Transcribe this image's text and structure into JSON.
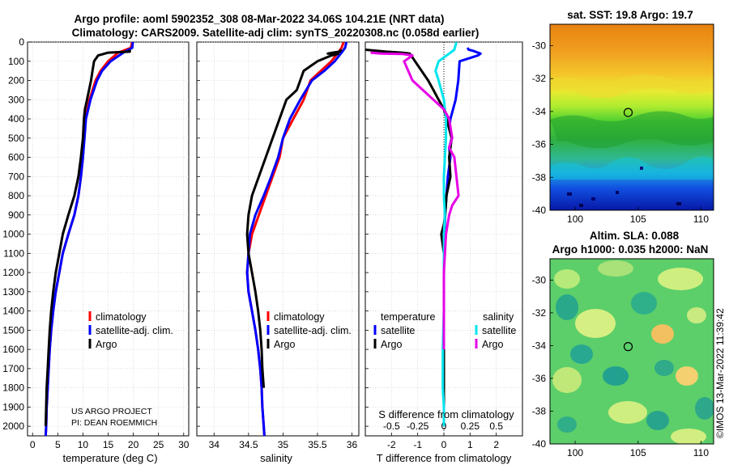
{
  "header": {
    "title_line1": "Argo profile: aoml 5902352_308 08-Mar-2022 34.06S 104.21E (NRT data)",
    "title_line2": "Climatology: CARS2009. Satellite-adj clim: synTS_20220308.nc (0.058d earlier)"
  },
  "credit": {
    "line1": "US ARGO PROJECT",
    "line2": "PI: DEAN ROEMMICH"
  },
  "watermark": "©IMOS 13-Mar-2022 11:39:42",
  "colors": {
    "climatology": "#ff0000",
    "satellite_adj": "#0000ff",
    "argo": "#000000",
    "satellite_s": "#00e5ee",
    "argo_s": "#e600e6"
  },
  "chart_data": [
    {
      "type": "line",
      "id": "temperature",
      "xlabel": "temperature (deg C)",
      "xlim": [
        -1,
        31
      ],
      "xticks": [
        0,
        5,
        10,
        15,
        20,
        25,
        30
      ],
      "ylim": [
        0,
        2050
      ],
      "yticks": [
        0,
        100,
        200,
        300,
        400,
        500,
        600,
        700,
        800,
        900,
        1000,
        1100,
        1200,
        1300,
        1400,
        1500,
        1600,
        1700,
        1800,
        1900,
        2000
      ],
      "y_reversed": true,
      "legend": [
        "climatology",
        "satellite-adj. clim.",
        "Argo"
      ],
      "series": [
        {
          "name": "climatology",
          "x": [
            19.8,
            19.5,
            17,
            15,
            13.5,
            12.5,
            11.3,
            10.5,
            10.2,
            10,
            9.6,
            9.1,
            8.3,
            7.1,
            6,
            5.3,
            4.6,
            4.1,
            3.7,
            3.4,
            3.2,
            3,
            2.8,
            2.7,
            2.6
          ],
          "y": [
            0,
            30,
            55,
            100,
            150,
            200,
            300,
            400,
            500,
            600,
            700,
            800,
            900,
            1000,
            1100,
            1200,
            1300,
            1400,
            1500,
            1600,
            1700,
            1800,
            1900,
            2000,
            2050
          ]
        },
        {
          "name": "satellite-adj. clim.",
          "x": [
            19.9,
            19.8,
            18,
            15.5,
            13.8,
            12.8,
            11.5,
            10.6,
            10.3,
            10,
            9.6,
            9.1,
            8.3,
            7.1,
            6,
            5.3,
            4.6,
            4.1,
            3.7,
            3.4,
            3.2,
            3,
            2.8,
            2.7,
            2.6
          ],
          "y": [
            0,
            30,
            55,
            100,
            150,
            200,
            300,
            400,
            500,
            600,
            700,
            800,
            900,
            1000,
            1100,
            1200,
            1300,
            1400,
            1500,
            1600,
            1700,
            1800,
            1900,
            2000,
            2050
          ]
        },
        {
          "name": "Argo",
          "x": [
            19.3,
            19.3,
            15,
            13,
            12.2,
            11.9,
            11.6,
            11.2,
            10.8,
            10.4,
            10.2,
            10,
            9.6,
            9.1,
            8.3,
            7.1,
            6,
            5.3,
            4.6,
            4.1,
            3.7,
            3.4,
            3.2,
            3,
            2.8,
            2.7,
            2.6
          ],
          "y": [
            40,
            50,
            55,
            70,
            100,
            150,
            200,
            250,
            300,
            350,
            400,
            500,
            600,
            700,
            800,
            900,
            1000,
            1100,
            1200,
            1300,
            1400,
            1500,
            1600,
            1700,
            1800,
            1900,
            2000
          ]
        }
      ]
    },
    {
      "type": "line",
      "id": "salinity",
      "xlabel": "salinity",
      "xlim": [
        33.75,
        36.1
      ],
      "xticks": [
        34,
        34.5,
        35,
        35.5,
        36
      ],
      "xticklabels": [
        "34",
        "34.5",
        "35",
        "35.5",
        "36"
      ],
      "ylim": [
        0,
        2050
      ],
      "y_reversed": true,
      "legend": [
        "climatology",
        "satellite-adj. clim.",
        "Argo"
      ],
      "series": [
        {
          "name": "climatology",
          "x": [
            35.88,
            35.85,
            35.8,
            35.7,
            35.55,
            35.4,
            35.3,
            35.15,
            35.0,
            34.95,
            34.85,
            34.75,
            34.65,
            34.55,
            34.5,
            34.48,
            34.5,
            34.55,
            34.6,
            34.64,
            34.67,
            34.69,
            34.7,
            34.72,
            34.73
          ],
          "y": [
            0,
            30,
            55,
            100,
            150,
            200,
            300,
            400,
            500,
            600,
            700,
            800,
            900,
            1000,
            1100,
            1200,
            1300,
            1400,
            1500,
            1600,
            1700,
            1800,
            1900,
            2000,
            2050
          ]
        },
        {
          "name": "satellite-adj. clim.",
          "x": [
            35.92,
            35.9,
            35.85,
            35.75,
            35.6,
            35.42,
            35.25,
            35.1,
            35.0,
            34.93,
            34.83,
            34.72,
            34.6,
            34.52,
            34.5,
            34.48,
            34.5,
            34.55,
            34.6,
            34.64,
            34.67,
            34.69,
            34.7,
            34.72,
            34.73
          ],
          "y": [
            0,
            30,
            55,
            100,
            150,
            200,
            300,
            400,
            500,
            600,
            700,
            800,
            900,
            1000,
            1100,
            1200,
            1300,
            1400,
            1500,
            1600,
            1700,
            1800,
            1900,
            2000,
            2050
          ]
        },
        {
          "name": "Argo",
          "x": [
            35.85,
            35.82,
            35.72,
            35.65,
            35.8,
            35.7,
            35.5,
            35.3,
            35.2,
            35.05,
            34.95,
            34.85,
            34.75,
            34.65,
            34.55,
            34.5,
            34.48,
            34.5,
            34.55,
            34.6,
            34.64,
            34.67,
            34.69,
            34.7,
            34.72
          ],
          "y": [
            40,
            50,
            55,
            60,
            62,
            70,
            100,
            150,
            250,
            300,
            400,
            500,
            600,
            700,
            800,
            900,
            1000,
            1100,
            1200,
            1300,
            1400,
            1500,
            1600,
            1700,
            1800
          ]
        }
      ]
    },
    {
      "type": "line",
      "id": "differences",
      "xlabel": "T difference from climatology",
      "xlabel2": "S difference from climatology",
      "xlim": [
        -3,
        3
      ],
      "xticks": [
        -2,
        -1,
        0,
        1,
        2
      ],
      "s_ticklabels": [
        "-0.5",
        "-0.25",
        "0",
        "0.25",
        "0.5"
      ],
      "ylim": [
        0,
        2050
      ],
      "y_reversed": true,
      "legend_titles": [
        "temperature",
        "salinity"
      ],
      "legend": [
        "satellite",
        "Argo",
        "satellite",
        "Argo"
      ],
      "series": [
        {
          "name": "temperature satellite",
          "x": [
            0.9,
            0.95,
            1.1,
            1.4,
            1.3,
            0.6,
            0.55,
            0.45,
            0.35,
            0.25,
            0.2,
            0.3,
            0.2,
            0.25,
            0.15,
            0.1,
            0.05,
            0.02,
            0.0,
            0.0,
            0.0,
            0.0,
            0.0,
            0.0,
            0.0,
            0.0,
            0.0
          ],
          "y": [
            30,
            40,
            45,
            60,
            70,
            100,
            200,
            300,
            350,
            400,
            450,
            500,
            550,
            600,
            700,
            800,
            900,
            1000,
            1100,
            1200,
            1300,
            1400,
            1500,
            1600,
            1700,
            1800,
            2000
          ]
        },
        {
          "name": "temperature Argo",
          "x": [
            -3,
            -2.2,
            -1.6,
            -1.3,
            -1.2,
            -1.1,
            -0.6,
            -0.4,
            -0.2,
            0,
            0.1,
            0.3,
            0.2,
            0.25,
            0.1,
            0.05,
            0.0,
            -0.1,
            0.0,
            0.0,
            0.0,
            0.0,
            0.0,
            0.0,
            0.0,
            0.0
          ],
          "y": [
            40,
            50,
            55,
            60,
            80,
            100,
            200,
            250,
            300,
            350,
            400,
            500,
            600,
            700,
            800,
            900,
            950,
            1000,
            1100,
            1200,
            1300,
            1400,
            1500,
            1600,
            1800,
            2000
          ]
        },
        {
          "name": "salinity satellite",
          "x": [
            0.12,
            0.1,
            0.05,
            0.0,
            -0.05,
            -0.08,
            -0.05,
            0.0,
            0.02,
            0.02,
            0.01,
            0.0,
            0.0,
            0.01,
            0.0,
            0.0,
            0.0,
            0.0,
            -0.01,
            -0.01,
            0.0,
            0.0
          ],
          "y": [
            0,
            40,
            60,
            80,
            100,
            150,
            200,
            300,
            400,
            500,
            600,
            700,
            800,
            900,
            1000,
            1100,
            1200,
            1400,
            1600,
            1800,
            1900,
            2000
          ]
        },
        {
          "name": "salinity Argo",
          "x": [
            -0.7,
            -0.6,
            -0.4,
            -0.3,
            -0.38,
            -0.34,
            -0.3,
            -0.2,
            -0.1,
            0,
            0.05,
            0.08,
            0.05,
            0.1,
            0.12,
            0.14,
            0.08,
            0.05,
            0.02,
            0.01,
            0,
            0,
            0,
            0,
            0
          ],
          "y": [
            55,
            60,
            62,
            70,
            100,
            150,
            200,
            250,
            300,
            350,
            400,
            500,
            550,
            600,
            700,
            800,
            850,
            900,
            1000,
            1100,
            1200,
            1300,
            1400,
            1500,
            1600
          ]
        }
      ]
    },
    {
      "type": "heatmap",
      "id": "sst_map",
      "title": "sat. SST: 19.8 Argo: 19.7",
      "xlim": [
        98,
        111
      ],
      "ylim": [
        -40,
        -28.7
      ],
      "xticks": [
        100,
        105,
        110
      ],
      "yticks": [
        -30,
        -32,
        -34,
        -36,
        -38,
        -40
      ],
      "marker": {
        "lon": 104.21,
        "lat": -34.06
      }
    },
    {
      "type": "heatmap",
      "id": "sla_map",
      "title_line1": "Altim. SLA: 0.088",
      "title_line2": "Argo h1000: 0.035 h2000: NaN",
      "xlim": [
        98,
        111
      ],
      "ylim": [
        -40,
        -28.7
      ],
      "xticks": [
        100,
        105,
        110
      ],
      "yticks": [
        -30,
        -32,
        -34,
        -36,
        -38,
        -40
      ],
      "marker": {
        "lon": 104.21,
        "lat": -34.06
      }
    }
  ]
}
